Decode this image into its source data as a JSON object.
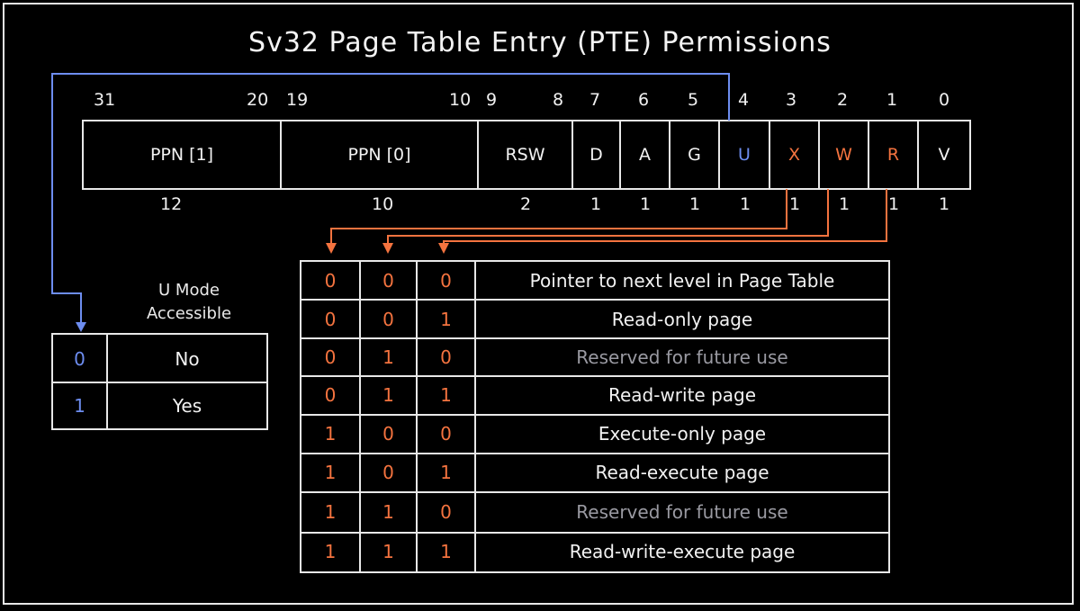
{
  "title": "Sv32 Page Table Entry (PTE) Permissions",
  "fields": [
    {
      "name": "PPN [1]",
      "width": "12",
      "color": "white",
      "bits_left": "31",
      "bits_right": "20"
    },
    {
      "name": "PPN [0]",
      "width": "10",
      "color": "white",
      "bits_left": "19",
      "bits_right": "10"
    },
    {
      "name": "RSW",
      "width": "2",
      "color": "white",
      "bits_left": "9",
      "bits_right": "8"
    },
    {
      "name": "D",
      "width": "1",
      "color": "white",
      "bit": "7"
    },
    {
      "name": "A",
      "width": "1",
      "color": "white",
      "bit": "6"
    },
    {
      "name": "G",
      "width": "1",
      "color": "white",
      "bit": "5"
    },
    {
      "name": "U",
      "width": "1",
      "color": "blue",
      "bit": "4"
    },
    {
      "name": "X",
      "width": "1",
      "color": "orange",
      "bit": "3"
    },
    {
      "name": "W",
      "width": "1",
      "color": "orange",
      "bit": "2"
    },
    {
      "name": "R",
      "width": "1",
      "color": "orange",
      "bit": "1"
    },
    {
      "name": "V",
      "width": "1",
      "color": "white",
      "bit": "0"
    }
  ],
  "u_mode": {
    "heading_line1": "U Mode",
    "heading_line2": "Accessible",
    "rows": [
      {
        "value": "0",
        "meaning": "No"
      },
      {
        "value": "1",
        "meaning": "Yes"
      }
    ]
  },
  "permissions": [
    {
      "x": "0",
      "w": "0",
      "r": "0",
      "meaning": "Pointer to next level in Page Table",
      "reserved": false
    },
    {
      "x": "0",
      "w": "0",
      "r": "1",
      "meaning": "Read-only page",
      "reserved": false
    },
    {
      "x": "0",
      "w": "1",
      "r": "0",
      "meaning": "Reserved for future use",
      "reserved": true
    },
    {
      "x": "0",
      "w": "1",
      "r": "1",
      "meaning": "Read-write page",
      "reserved": false
    },
    {
      "x": "1",
      "w": "0",
      "r": "0",
      "meaning": "Execute-only page",
      "reserved": false
    },
    {
      "x": "1",
      "w": "0",
      "r": "1",
      "meaning": "Read-execute page",
      "reserved": false
    },
    {
      "x": "1",
      "w": "1",
      "r": "0",
      "meaning": "Reserved for future use",
      "reserved": true
    },
    {
      "x": "1",
      "w": "1",
      "r": "1",
      "meaning": "Read-write-execute page",
      "reserved": false
    }
  ],
  "colors": {
    "orange": "#f4733f",
    "blue": "#6d8df0",
    "grey": "#9a9aa2",
    "white": "#f2f2f2"
  }
}
